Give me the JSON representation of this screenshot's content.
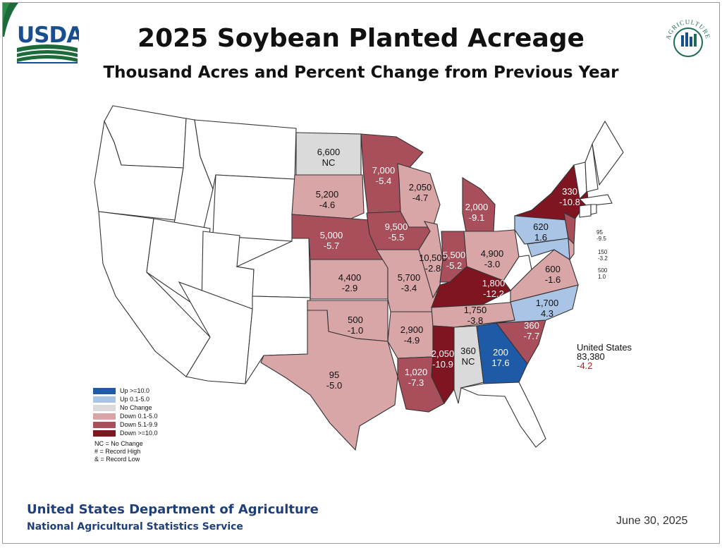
{
  "title": "2025 Soybean Planted Acreage",
  "subtitle": "Thousand Acres and Percent Change from Previous Year",
  "logos": {
    "usda": "USDA",
    "agriculture_counts": "AGRICULTURE COUNTS"
  },
  "colors": {
    "up_ge_10": "#1f5aa6",
    "up_0_1_5": "#a9c4e4",
    "no_change": "#dadada",
    "down_0_1_5": "#d9a6a8",
    "down_5_1_9_9": "#a84f5b",
    "down_ge_10": "#7e1521",
    "no_data": "#ffffff",
    "us_change": "#b3202a",
    "agency_blue": "#1f3f7a"
  },
  "states": [
    {
      "state": "ND",
      "acres": "6,600",
      "change": "NC",
      "category": "no_change"
    },
    {
      "state": "MN",
      "acres": "7,000",
      "change": "-5.4",
      "category": "down_5_1_9_9"
    },
    {
      "state": "SD",
      "acres": "5,200",
      "change": "-4.6",
      "category": "down_0_1_5"
    },
    {
      "state": "WI",
      "acres": "2,050",
      "change": "-4.7",
      "category": "down_0_1_5"
    },
    {
      "state": "MI",
      "acres": "2,000",
      "change": "-9.1",
      "category": "down_5_1_9_9"
    },
    {
      "state": "NY",
      "acres": "330",
      "change": "-10.8",
      "category": "down_ge_10"
    },
    {
      "state": "IA",
      "acres": "9,500",
      "change": "-5.5",
      "category": "down_5_1_9_9"
    },
    {
      "state": "NE",
      "acres": "5,000",
      "change": "-5.7",
      "category": "down_5_1_9_9"
    },
    {
      "state": "IL",
      "acres": "10,500",
      "change": "-2.8",
      "category": "down_0_1_5"
    },
    {
      "state": "IN",
      "acres": "5,500",
      "change": "-5.2",
      "category": "down_5_1_9_9"
    },
    {
      "state": "OH",
      "acres": "4,900",
      "change": "-3.0",
      "category": "down_0_1_5"
    },
    {
      "state": "PA",
      "acres": "620",
      "change": "1.6",
      "category": "up_0_1_5"
    },
    {
      "state": "KS",
      "acres": "4,400",
      "change": "-2.9",
      "category": "down_0_1_5"
    },
    {
      "state": "MO",
      "acres": "5,700",
      "change": "-3.4",
      "category": "down_0_1_5"
    },
    {
      "state": "KY",
      "acres": "1,800",
      "change": "-12.2",
      "category": "down_ge_10"
    },
    {
      "state": "VA",
      "acres": "600",
      "change": "-1.6",
      "category": "down_0_1_5"
    },
    {
      "state": "OK",
      "acres": "500",
      "change": "-1.0",
      "category": "down_0_1_5"
    },
    {
      "state": "AR",
      "acres": "2,900",
      "change": "-4.9",
      "category": "down_0_1_5"
    },
    {
      "state": "TN",
      "acres": "1,750",
      "change": "-3.8",
      "category": "down_0_1_5"
    },
    {
      "state": "NC",
      "acres": "1,700",
      "change": "4.3",
      "category": "up_0_1_5"
    },
    {
      "state": "SC",
      "acres": "360",
      "change": "-7.7",
      "category": "down_5_1_9_9"
    },
    {
      "state": "MS",
      "acres": "2,050",
      "change": "-10.9",
      "category": "down_ge_10"
    },
    {
      "state": "AL",
      "acres": "360",
      "change": "NC",
      "category": "no_change"
    },
    {
      "state": "GA",
      "acres": "200",
      "change": "17.6",
      "category": "up_ge_10"
    },
    {
      "state": "TX",
      "acres": "95",
      "change": "-5.0",
      "category": "down_0_1_5"
    },
    {
      "state": "LA",
      "acres": "1,020",
      "change": "-7.3",
      "category": "down_5_1_9_9"
    },
    {
      "state": "NJ",
      "acres": "95",
      "change": "-9.5",
      "category": "down_5_1_9_9"
    },
    {
      "state": "DE",
      "acres": "150",
      "change": "-3.2",
      "category": "down_0_1_5"
    },
    {
      "state": "MD",
      "acres": "500",
      "change": "1.0",
      "category": "up_0_1_5"
    }
  ],
  "us_total": {
    "label": "United States",
    "acres": "83,380",
    "change": "-4.2"
  },
  "legend": {
    "items": [
      {
        "label": "Up >=10.0",
        "category": "up_ge_10"
      },
      {
        "label": "Up 0.1-5.0",
        "category": "up_0_1_5"
      },
      {
        "label": "No Change",
        "category": "no_change"
      },
      {
        "label": "Down 0.1-5.0",
        "category": "down_0_1_5"
      },
      {
        "label": "Down 5.1-9.9",
        "category": "down_5_1_9_9"
      },
      {
        "label": "Down >=10.0",
        "category": "down_ge_10"
      }
    ],
    "notes": [
      "NC = No Change",
      "# = Record High",
      "& = Record Low"
    ]
  },
  "footer": {
    "agency": "United States Department of Agriculture",
    "service": "National Agricultural Statistics Service",
    "date": "June 30, 2025"
  }
}
